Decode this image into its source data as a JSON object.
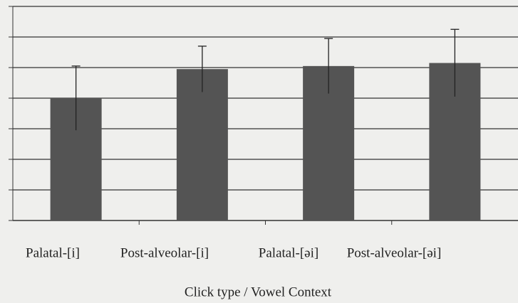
{
  "chart_data": {
    "type": "bar",
    "x_label": "Click type   /   Vowel Context",
    "categories": [
      "Palatal-[i]",
      "Post-alveolar-[i]",
      "Palatal-[əi]",
      "Post-alveolar-[əi]"
    ],
    "values": [
      4.0,
      4.95,
      5.05,
      5.15
    ],
    "errors": [
      1.05,
      0.75,
      0.9,
      1.1
    ],
    "color": "#545454",
    "ylim": [
      0,
      7
    ],
    "yticks": [
      0,
      1,
      2,
      3,
      4,
      5,
      6,
      7
    ],
    "grid": true
  }
}
